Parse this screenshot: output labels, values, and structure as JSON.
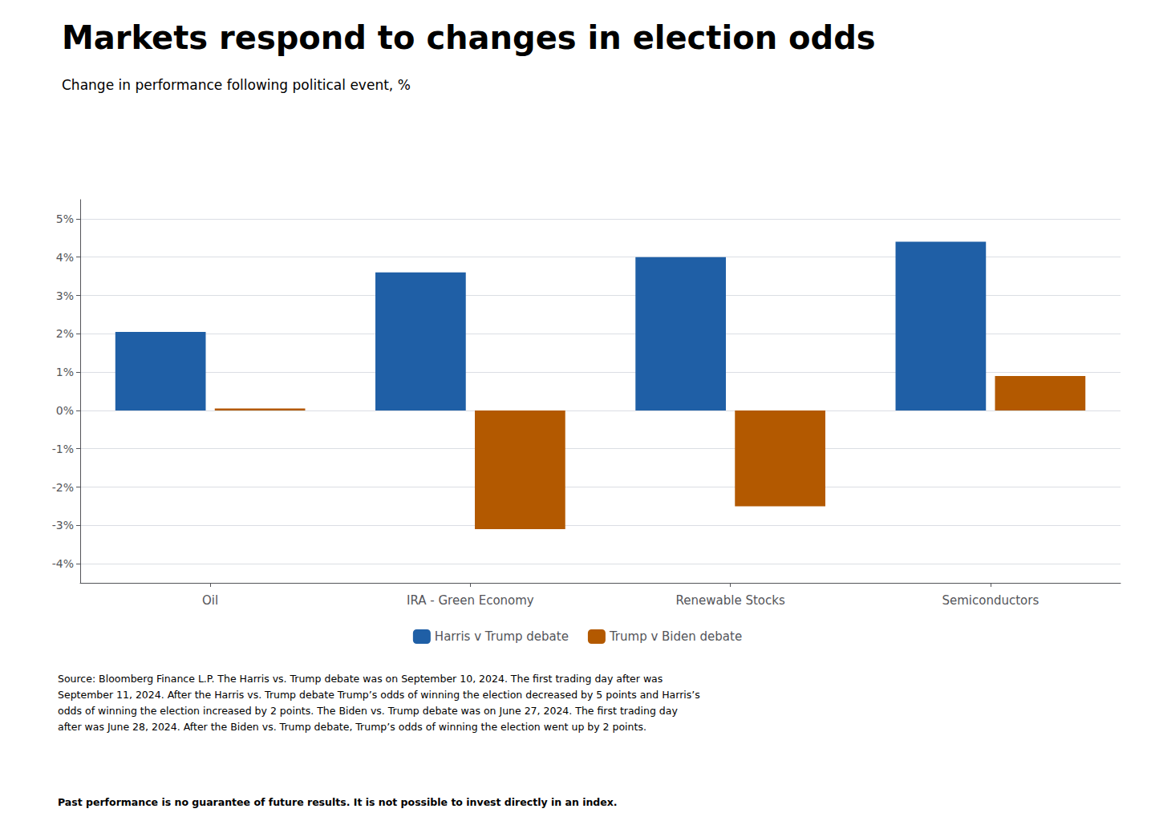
{
  "chart_data": {
    "type": "bar",
    "title": "Markets respond to changes in election odds",
    "subtitle": "Change in performance following political event, %",
    "categories": [
      "Oil",
      "IRA - Green Economy",
      "Renewable Stocks",
      "Semiconductors"
    ],
    "series": [
      {
        "name": "Harris v Trump debate",
        "color": "#1f5fa6",
        "values": [
          2.05,
          3.6,
          4.0,
          4.4
        ]
      },
      {
        "name": "Trump v Biden debate",
        "color": "#b35900",
        "values": [
          0.05,
          -3.1,
          -2.5,
          0.9
        ]
      }
    ],
    "ylim": [
      -4.5,
      5.5
    ],
    "yticks": [
      {
        "value": -4,
        "label": "-4%"
      },
      {
        "value": -3,
        "label": "-3%"
      },
      {
        "value": -2,
        "label": "-2%"
      },
      {
        "value": -1,
        "label": "-1%"
      },
      {
        "value": 0,
        "label": "0%"
      },
      {
        "value": 1,
        "label": "1%"
      },
      {
        "value": 2,
        "label": "2%"
      },
      {
        "value": 3,
        "label": "3%"
      },
      {
        "value": 4,
        "label": "4%"
      },
      {
        "value": 5,
        "label": "5%"
      }
    ],
    "grid": true,
    "legend": "bottom",
    "annotations": [
      "Source: Bloomberg Finance L.P. The Harris vs. Trump debate was on September 10, 2024. The first trading day after was\nSeptember 11, 2024. After the Harris vs. Trump debate Trump’s odds of winning the election decreased by 5 points and Harris’s\nodds of winning the election increased by 2 points. The Biden vs. Trump debate was on June 27, 2024. The first trading day\nafter was June 28, 2024. After the Biden vs. Trump debate, Trump’s odds of winning the election went up by 2 points.",
      "Past performance is no guarantee of future results. It is not possible to invest directly in an index."
    ]
  }
}
